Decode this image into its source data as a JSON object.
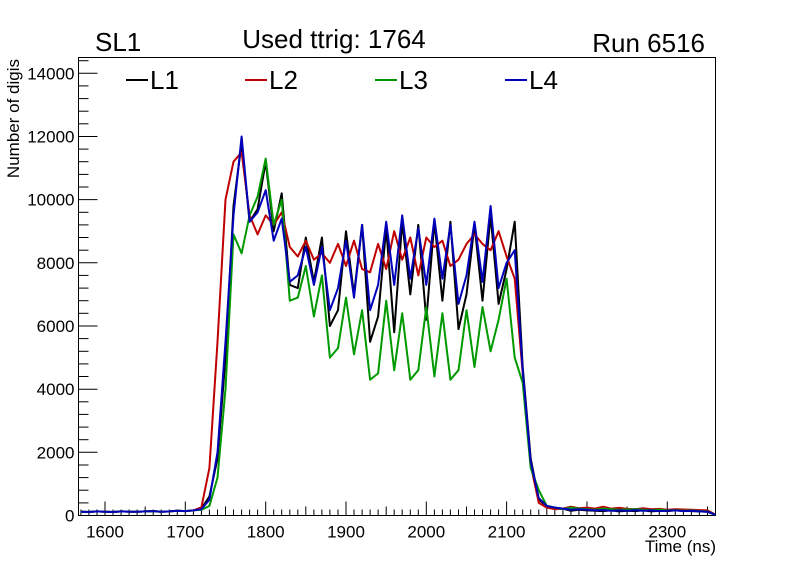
{
  "chart_data": {
    "type": "line",
    "title": "Used ttrig: 1764",
    "corner_left": "SL1",
    "corner_right": "Run 6516",
    "xlabel": "Time (ns)",
    "ylabel": "Number of digis",
    "xlim": [
      1567,
      2360
    ],
    "ylim": [
      0,
      14500
    ],
    "xticks": [
      1600,
      1700,
      1800,
      1900,
      2000,
      2100,
      2200,
      2300
    ],
    "yticks": [
      0,
      2000,
      4000,
      6000,
      8000,
      10000,
      12000,
      14000
    ],
    "legend_position": "top",
    "x": [
      1570,
      1580,
      1590,
      1600,
      1610,
      1620,
      1630,
      1640,
      1650,
      1660,
      1670,
      1680,
      1690,
      1700,
      1710,
      1720,
      1730,
      1740,
      1750,
      1760,
      1770,
      1780,
      1790,
      1800,
      1810,
      1820,
      1830,
      1840,
      1850,
      1860,
      1870,
      1880,
      1890,
      1900,
      1910,
      1920,
      1930,
      1940,
      1950,
      1960,
      1970,
      1980,
      1990,
      2000,
      2010,
      2020,
      2030,
      2040,
      2050,
      2060,
      2070,
      2080,
      2090,
      2100,
      2110,
      2120,
      2130,
      2140,
      2150,
      2160,
      2170,
      2180,
      2190,
      2200,
      2210,
      2220,
      2230,
      2240,
      2250,
      2260,
      2270,
      2280,
      2290,
      2300,
      2310,
      2320,
      2330,
      2340,
      2350,
      2360
    ],
    "series": [
      {
        "name": "L1",
        "color": "#000000",
        "values": [
          120,
          110,
          130,
          120,
          110,
          130,
          120,
          120,
          130,
          140,
          120,
          130,
          150,
          140,
          160,
          220,
          600,
          1800,
          5000,
          9800,
          11800,
          9300,
          9700,
          11200,
          9000,
          10200,
          7300,
          7200,
          8800,
          7400,
          8800,
          6000,
          6500,
          9000,
          7000,
          9200,
          5500,
          6300,
          9100,
          5800,
          9300,
          7000,
          9200,
          6200,
          9300,
          6800,
          9300,
          5900,
          7000,
          9200,
          6800,
          9500,
          6700,
          7800,
          9300,
          4700,
          1800,
          500,
          300,
          250,
          220,
          150,
          180,
          160,
          150,
          140,
          160,
          130,
          150,
          140,
          160,
          130,
          150,
          140,
          160,
          150,
          140,
          130,
          120,
          20
        ]
      },
      {
        "name": "L2",
        "color": "#c00000",
        "values": [
          120,
          110,
          130,
          120,
          110,
          130,
          120,
          120,
          130,
          140,
          120,
          130,
          150,
          140,
          160,
          260,
          1500,
          5500,
          10000,
          11200,
          11500,
          9500,
          8900,
          9500,
          9200,
          9600,
          8500,
          8200,
          8700,
          8100,
          8300,
          8000,
          8600,
          7900,
          8700,
          7800,
          7700,
          8600,
          7800,
          9000,
          8100,
          8800,
          7600,
          8800,
          8500,
          8700,
          7900,
          8100,
          8600,
          8900,
          8600,
          8400,
          9000,
          8200,
          7500,
          4500,
          1600,
          400,
          250,
          200,
          220,
          280,
          230,
          250,
          220,
          280,
          220,
          240,
          210,
          200,
          230,
          200,
          210,
          180,
          200,
          190,
          180,
          170,
          160,
          30
        ]
      },
      {
        "name": "L3",
        "color": "#009900",
        "values": [
          120,
          110,
          130,
          120,
          110,
          130,
          120,
          120,
          130,
          140,
          120,
          130,
          150,
          140,
          160,
          180,
          300,
          1200,
          4000,
          8900,
          8300,
          9500,
          10100,
          11300,
          9200,
          10000,
          6800,
          6900,
          7900,
          6300,
          7600,
          5000,
          5300,
          6900,
          5100,
          6500,
          4300,
          4500,
          6800,
          4600,
          6400,
          4300,
          4600,
          6600,
          4400,
          6400,
          4300,
          4600,
          6500,
          4700,
          6600,
          5200,
          6200,
          7500,
          5000,
          4200,
          1500,
          800,
          300,
          250,
          200,
          250,
          220,
          200,
          180,
          220,
          200,
          180,
          190,
          200,
          180,
          170,
          180,
          160,
          170,
          150,
          160,
          140,
          130,
          20
        ]
      },
      {
        "name": "L4",
        "color": "#0000bb",
        "values": [
          120,
          110,
          130,
          120,
          110,
          130,
          120,
          120,
          130,
          140,
          120,
          130,
          150,
          140,
          160,
          200,
          500,
          2000,
          5500,
          9500,
          12000,
          9300,
          9600,
          10300,
          8700,
          9400,
          7400,
          7600,
          8500,
          7300,
          8500,
          6500,
          7200,
          8700,
          6900,
          9200,
          6500,
          7300,
          9300,
          7300,
          9500,
          7500,
          9100,
          7300,
          9400,
          7500,
          9200,
          6700,
          7600,
          9300,
          7400,
          9800,
          7200,
          8000,
          8400,
          4600,
          1700,
          550,
          300,
          250,
          220,
          180,
          200,
          180,
          160,
          170,
          150,
          160,
          150,
          170,
          150,
          160,
          140,
          150,
          160,
          140,
          150,
          130,
          120,
          20
        ]
      }
    ]
  }
}
